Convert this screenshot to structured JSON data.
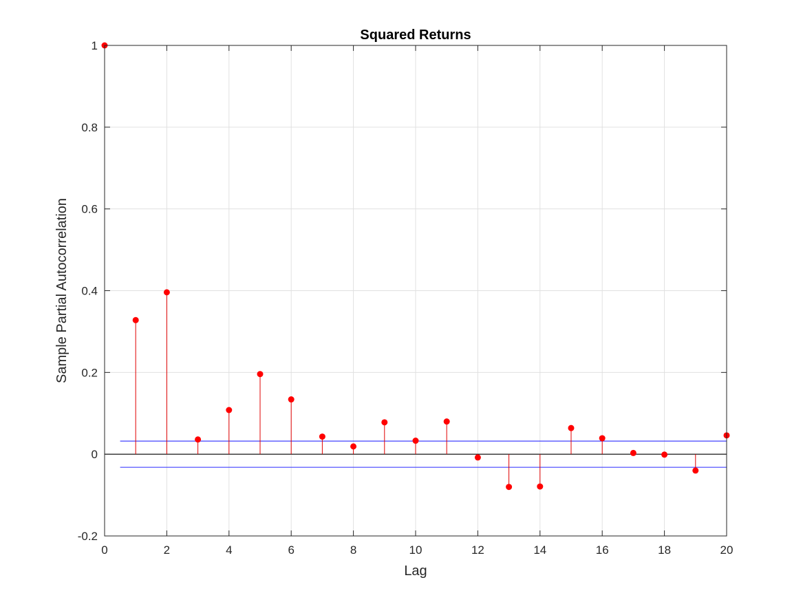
{
  "chart_data": {
    "type": "stem",
    "title": "Squared Returns",
    "xlabel": "Lag",
    "ylabel": "Sample Partial Autocorrelation",
    "xlim": [
      0,
      20
    ],
    "ylim": [
      -0.2,
      1
    ],
    "xticks": [
      "0",
      "2",
      "4",
      "6",
      "8",
      "10",
      "12",
      "14",
      "16",
      "18",
      "20"
    ],
    "yticks": [
      "-0.2",
      "0",
      "0.2",
      "0.4",
      "0.6",
      "0.8",
      "1"
    ],
    "grid": true,
    "series": [
      {
        "x": [
          0,
          1,
          2,
          3,
          4,
          5,
          6,
          7,
          8,
          9,
          10,
          11,
          12,
          13,
          14,
          15,
          16,
          17,
          18,
          19,
          20
        ],
        "values": [
          1.0,
          0.328,
          0.396,
          0.036,
          0.108,
          0.196,
          0.134,
          0.043,
          0.019,
          0.078,
          0.033,
          0.08,
          -0.008,
          -0.08,
          -0.079,
          0.064,
          0.039,
          0.003,
          -0.001,
          -0.04,
          0.046
        ]
      }
    ],
    "confidence_bounds": {
      "upper": 0.032,
      "lower": -0.032,
      "x_start": 0.5,
      "x_end": 20
    },
    "colors": {
      "stem": "#e00000",
      "marker": "#ff0000",
      "bounds": "#4040ff",
      "zero_line": "#000000",
      "grid": "#e0e0e0"
    }
  }
}
